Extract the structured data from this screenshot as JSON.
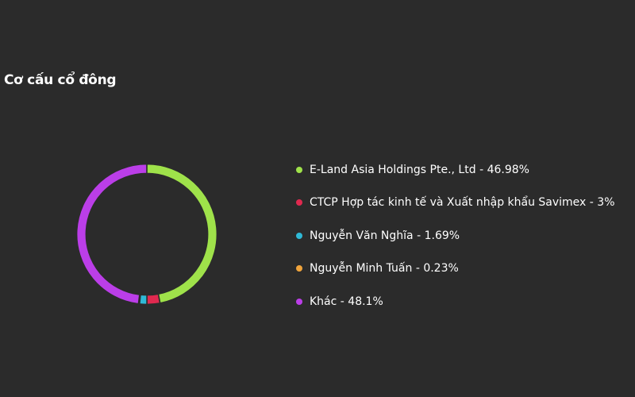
{
  "title": "Cơ cấu cổ đông",
  "chart_data": {
    "type": "pie",
    "donut": true,
    "legend_position": "right",
    "series": [
      {
        "name": "E-Land Asia Holdings Pte., Ltd",
        "value": 46.98,
        "label": "46.98%",
        "color": "#9fe24a"
      },
      {
        "name": "CTCP Hợp tác kinh tế và Xuất nhập khẩu Savimex",
        "value": 3,
        "label": "3%",
        "color": "#e0294f"
      },
      {
        "name": "Nguyễn Văn Nghĩa",
        "value": 1.69,
        "label": "1.69%",
        "color": "#2fb9d6"
      },
      {
        "name": "Nguyễn Minh Tuấn",
        "value": 0.23,
        "label": "0.23%",
        "color": "#f0a43c"
      },
      {
        "name": "Khác",
        "value": 48.1,
        "label": "48.1%",
        "color": "#bb3ee8"
      }
    ]
  }
}
